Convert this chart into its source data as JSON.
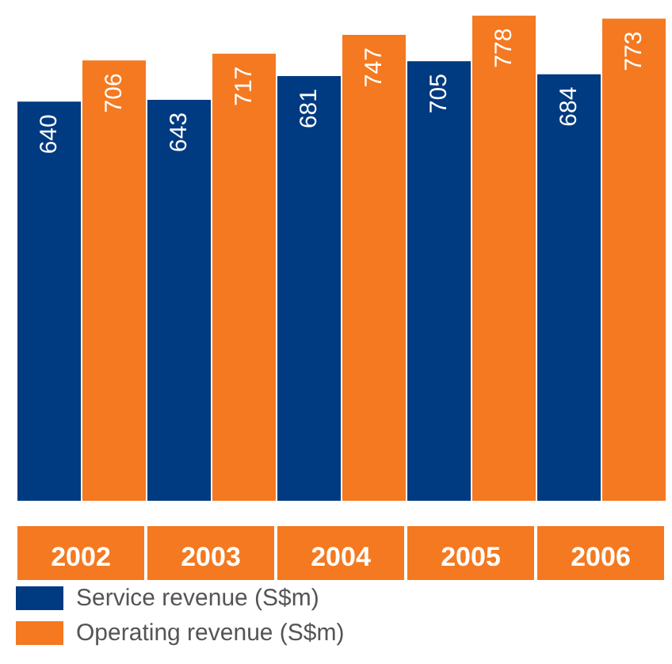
{
  "chart_data": {
    "type": "bar",
    "categories": [
      "2002",
      "2003",
      "2004",
      "2005",
      "2006"
    ],
    "series": [
      {
        "name": "Service revenue (S$m)",
        "color": "#003a80",
        "values": [
          640,
          643,
          681,
          705,
          684
        ]
      },
      {
        "name": "Operating revenue (S$m)",
        "color": "#f47920",
        "values": [
          706,
          717,
          747,
          778,
          773
        ]
      }
    ],
    "ylim": [
      0,
      803
    ],
    "data_labels": true,
    "legend": "bottom left",
    "grid": false
  }
}
